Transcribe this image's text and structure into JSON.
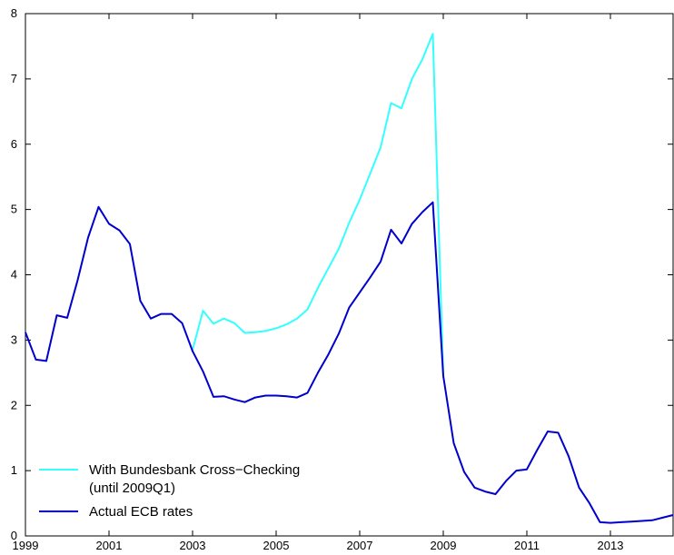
{
  "chart_data": {
    "type": "line",
    "title": "",
    "xlabel": "",
    "ylabel": "",
    "xlim": [
      1999,
      2014.5
    ],
    "ylim": [
      0,
      8
    ],
    "x_ticks": [
      1999,
      2001,
      2003,
      2005,
      2007,
      2009,
      2011,
      2013
    ],
    "x_tick_labels": [
      "1999",
      "2001",
      "2003",
      "2005",
      "2007",
      "2009",
      "2011",
      "2013"
    ],
    "y_ticks": [
      0,
      1,
      2,
      3,
      4,
      5,
      6,
      7,
      8
    ],
    "y_tick_labels": [
      "0",
      "1",
      "2",
      "3",
      "4",
      "5",
      "6",
      "7",
      "8"
    ],
    "grid": false,
    "legend_position": "bottom-left",
    "series": [
      {
        "name": "With Bundesbank Cross−Checking",
        "legend_line2": "(until 2009Q1)",
        "color": "#33FFFF",
        "x": [
          2003.0,
          2003.25,
          2003.5,
          2003.75,
          2004.0,
          2004.25,
          2004.5,
          2004.75,
          2005.0,
          2005.25,
          2005.5,
          2005.75,
          2006.0,
          2006.25,
          2006.5,
          2006.75,
          2007.0,
          2007.25,
          2007.5,
          2007.75,
          2008.0,
          2008.25,
          2008.5,
          2008.75,
          2009.0
        ],
        "y": [
          2.85,
          3.45,
          3.25,
          3.33,
          3.26,
          3.11,
          3.12,
          3.14,
          3.18,
          3.24,
          3.33,
          3.47,
          3.8,
          4.1,
          4.4,
          4.8,
          5.15,
          5.55,
          5.95,
          6.63,
          6.55,
          7.0,
          7.3,
          7.69,
          2.45
        ]
      },
      {
        "name": "Actual ECB rates",
        "color": "#0000CC",
        "x": [
          1999.0,
          1999.25,
          1999.5,
          1999.75,
          2000.0,
          2000.25,
          2000.5,
          2000.75,
          2001.0,
          2001.25,
          2001.5,
          2001.75,
          2002.0,
          2002.25,
          2002.5,
          2002.75,
          2003.0,
          2003.25,
          2003.5,
          2003.75,
          2004.0,
          2004.25,
          2004.5,
          2004.75,
          2005.0,
          2005.25,
          2005.5,
          2005.75,
          2006.0,
          2006.25,
          2006.5,
          2006.75,
          2007.0,
          2007.25,
          2007.5,
          2007.75,
          2008.0,
          2008.25,
          2008.5,
          2008.75,
          2009.0,
          2009.25,
          2009.5,
          2009.75,
          2010.0,
          2010.25,
          2010.5,
          2010.75,
          2011.0,
          2011.25,
          2011.5,
          2011.75,
          2012.0,
          2012.25,
          2012.5,
          2012.75,
          2013.0,
          2013.25,
          2013.5,
          2013.75,
          2014.0,
          2014.25,
          2014.5
        ],
        "y": [
          3.12,
          2.7,
          2.68,
          3.38,
          3.34,
          3.92,
          4.57,
          5.04,
          4.78,
          4.68,
          4.47,
          3.6,
          3.33,
          3.4,
          3.4,
          3.26,
          2.83,
          2.52,
          2.13,
          2.14,
          2.09,
          2.05,
          2.12,
          2.15,
          2.15,
          2.14,
          2.12,
          2.19,
          2.5,
          2.78,
          3.1,
          3.5,
          3.73,
          3.96,
          4.2,
          4.69,
          4.48,
          4.78,
          4.96,
          5.11,
          2.45,
          1.42,
          0.98,
          0.74,
          0.68,
          0.64,
          0.84,
          1.0,
          1.02,
          1.32,
          1.6,
          1.58,
          1.22,
          0.74,
          0.5,
          0.21,
          0.2,
          0.21,
          0.22,
          0.23,
          0.24,
          0.28,
          0.32
        ]
      }
    ]
  }
}
